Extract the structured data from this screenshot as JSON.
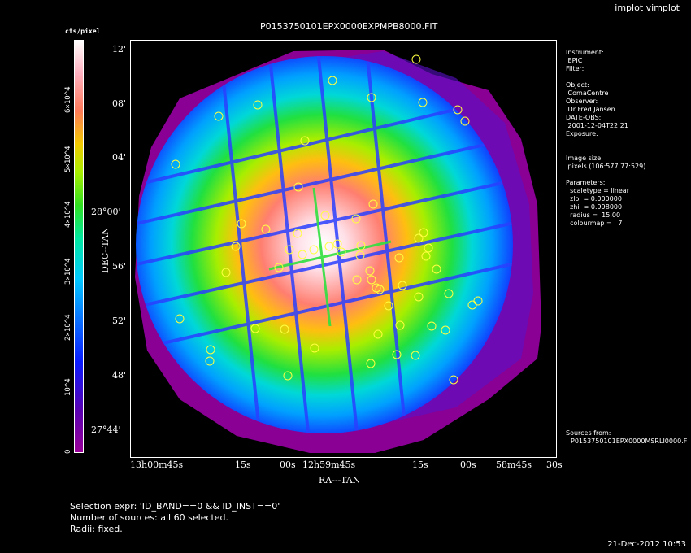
{
  "app": {
    "title": "implot vimplot"
  },
  "plot": {
    "title": "P0153750101EPX0000EXPMPB8000.FIT",
    "xlabel": "RA---TAN",
    "ylabel": "DEC--TAN",
    "y_ticks": [
      "12'",
      "08'",
      "04'",
      "28°00'",
      "56'",
      "52'",
      "48'",
      "27°44'"
    ],
    "x_ticks": [
      "13h00m45s",
      "15s",
      "00s",
      "12h59m45s",
      "15s",
      "00s",
      "58m45s",
      "30s"
    ]
  },
  "colorbar": {
    "unit": "cts/pixel",
    "ticks": [
      "0",
      "10^4",
      "2×10^4",
      "3×10^4",
      "4×10^4",
      "5×10^4",
      "6×10^4"
    ]
  },
  "info": [
    "Instrument:",
    " EPIC",
    "Filter:",
    "",
    "Object:",
    " ComaCentre",
    "Observer:",
    " Dr Fred Jansen",
    "DATE-OBS:",
    " 2001-12-04T22:21",
    "Exposure:",
    "",
    "",
    "Image size:",
    " pixels (106:577,77:529)",
    "",
    "Parameters:",
    "  scaletype = linear",
    "  zlo  = 0.000000",
    "  zhi  = 0.998000",
    "  radius =  15.00",
    "  colourmap =   7"
  ],
  "sources_label": "Sources from:",
  "sources_file": "P0153750101EPX0000MSRLI0000.F",
  "footer": {
    "selection": "Selection expr: 'ID_BAND==0 && ID_INST==0'",
    "count": "Number of sources: all 60 selected.",
    "radii": "Radii: fixed."
  },
  "timestamp": "21-Dec-2012 10:53",
  "sources": [
    [
      511,
      72
    ],
    [
      408,
      98
    ],
    [
      456,
      119
    ],
    [
      519,
      125
    ],
    [
      316,
      128
    ],
    [
      562,
      134
    ],
    [
      268,
      142
    ],
    [
      571,
      148
    ],
    [
      374,
      172
    ],
    [
      215,
      201
    ],
    [
      366,
      229
    ],
    [
      458,
      250
    ],
    [
      399,
      264
    ],
    [
      437,
      268
    ],
    [
      326,
      281
    ],
    [
      296,
      274
    ],
    [
      520,
      285
    ],
    [
      365,
      286
    ],
    [
      514,
      292
    ],
    [
      289,
      302
    ],
    [
      355,
      306
    ],
    [
      371,
      312
    ],
    [
      385,
      306
    ],
    [
      404,
      302
    ],
    [
      414,
      299
    ],
    [
      419,
      309
    ],
    [
      443,
      301
    ],
    [
      442,
      313
    ],
    [
      526,
      304
    ],
    [
      523,
      314
    ],
    [
      536,
      330
    ],
    [
      454,
      332
    ],
    [
      490,
      316
    ],
    [
      342,
      328
    ],
    [
      277,
      334
    ],
    [
      438,
      343
    ],
    [
      456,
      343
    ],
    [
      462,
      353
    ],
    [
      494,
      350
    ],
    [
      466,
      355
    ],
    [
      551,
      360
    ],
    [
      514,
      364
    ],
    [
      580,
      374
    ],
    [
      587,
      369
    ],
    [
      477,
      375
    ],
    [
      220,
      391
    ],
    [
      313,
      403
    ],
    [
      349,
      404
    ],
    [
      491,
      399
    ],
    [
      530,
      400
    ],
    [
      547,
      405
    ],
    [
      464,
      410
    ],
    [
      386,
      427
    ],
    [
      258,
      429
    ],
    [
      487,
      435
    ],
    [
      510,
      436
    ],
    [
      257,
      443
    ],
    [
      455,
      446
    ],
    [
      353,
      461
    ],
    [
      557,
      466
    ]
  ]
}
